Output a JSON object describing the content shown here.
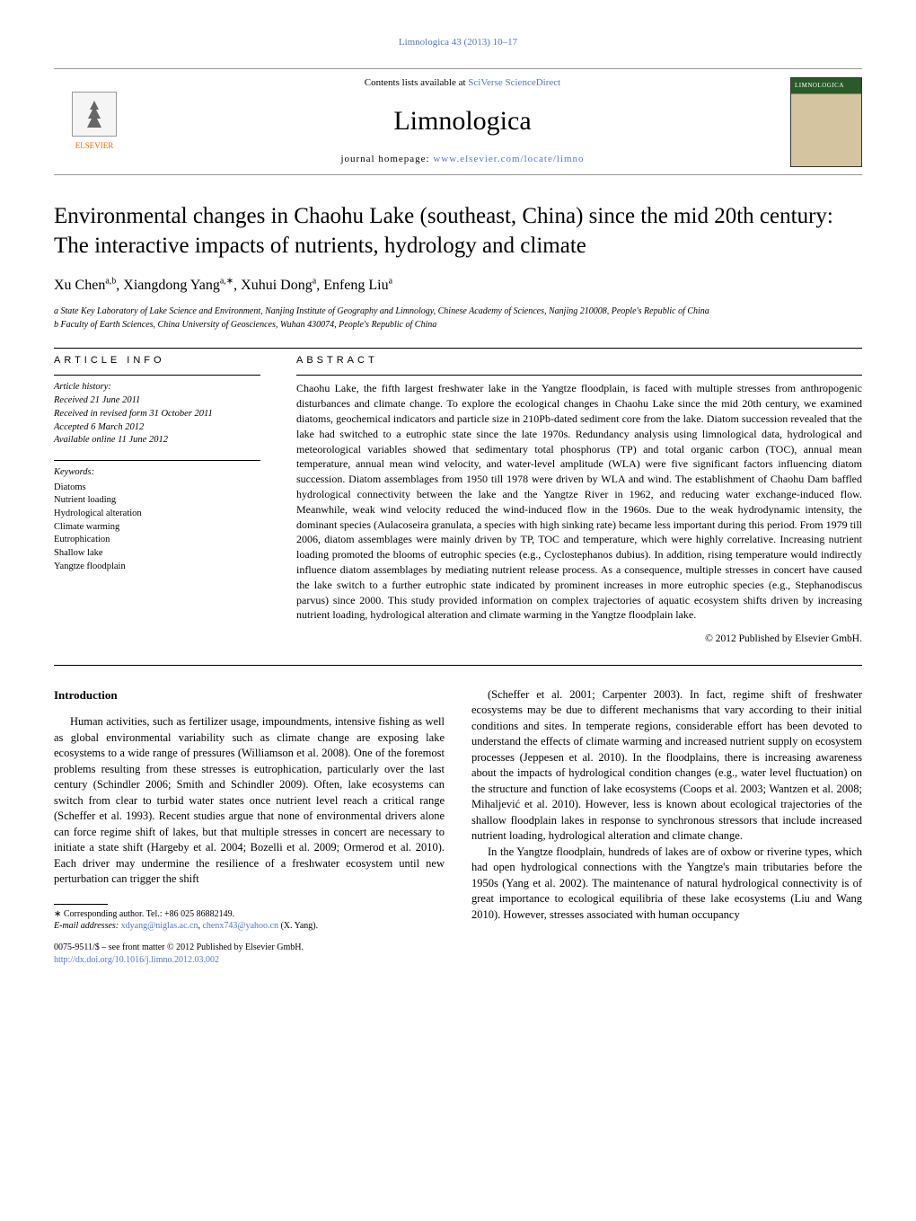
{
  "journal_ref": "Limnologica 43 (2013) 10–17",
  "header": {
    "publisher_name": "ELSEVIER",
    "contents_prefix": "Contents lists available at ",
    "contents_link": "SciVerse ScienceDirect",
    "journal_name": "Limnologica",
    "homepage_prefix": "journal homepage: ",
    "homepage_link": "www.elsevier.com/locate/limno"
  },
  "title": "Environmental changes in Chaohu Lake (southeast, China) since the mid 20th century: The interactive impacts of nutrients, hydrology and climate",
  "authors_html": "Xu Chen<sup>a,b</sup>, Xiangdong Yang<sup>a,∗</sup>, Xuhui Dong<sup>a</sup>, Enfeng Liu<sup>a</sup>",
  "affiliations": [
    "a State Key Laboratory of Lake Science and Environment, Nanjing Institute of Geography and Limnology, Chinese Academy of Sciences, Nanjing 210008, People's Republic of China",
    "b Faculty of Earth Sciences, China University of Geosciences, Wuhan 430074, People's Republic of China"
  ],
  "article_info": {
    "heading": "article info",
    "history_label": "Article history:",
    "history": [
      "Received 21 June 2011",
      "Received in revised form 31 October 2011",
      "Accepted 6 March 2012",
      "Available online 11 June 2012"
    ],
    "keywords_label": "Keywords:",
    "keywords": [
      "Diatoms",
      "Nutrient loading",
      "Hydrological alteration",
      "Climate warming",
      "Eutrophication",
      "Shallow lake",
      "Yangtze floodplain"
    ]
  },
  "abstract": {
    "heading": "abstract",
    "text": "Chaohu Lake, the fifth largest freshwater lake in the Yangtze floodplain, is faced with multiple stresses from anthropogenic disturbances and climate change. To explore the ecological changes in Chaohu Lake since the mid 20th century, we examined diatoms, geochemical indicators and particle size in 210Pb-dated sediment core from the lake. Diatom succession revealed that the lake had switched to a eutrophic state since the late 1970s. Redundancy analysis using limnological data, hydrological and meteorological variables showed that sedimentary total phosphorus (TP) and total organic carbon (TOC), annual mean temperature, annual mean wind velocity, and water-level amplitude (WLA) were five significant factors influencing diatom succession. Diatom assemblages from 1950 till 1978 were driven by WLA and wind. The establishment of Chaohu Dam baffled hydrological connectivity between the lake and the Yangtze River in 1962, and reducing water exchange-induced flow. Meanwhile, weak wind velocity reduced the wind-induced flow in the 1960s. Due to the weak hydrodynamic intensity, the dominant species (Aulacoseira granulata, a species with high sinking rate) became less important during this period. From 1979 till 2006, diatom assemblages were mainly driven by TP, TOC and temperature, which were highly correlative. Increasing nutrient loading promoted the blooms of eutrophic species (e.g., Cyclostephanos dubius). In addition, rising temperature would indirectly influence diatom assemblages by mediating nutrient release process. As a consequence, multiple stresses in concert have caused the lake switch to a further eutrophic state indicated by prominent increases in more eutrophic species (e.g., Stephanodiscus parvus) since 2000. This study provided information on complex trajectories of aquatic ecosystem shifts driven by increasing nutrient loading, hydrological alteration and climate warming in the Yangtze floodplain lake.",
    "copyright": "© 2012 Published by Elsevier GmbH."
  },
  "intro": {
    "heading": "Introduction",
    "col1_p1": "Human activities, such as fertilizer usage, impoundments, intensive fishing as well as global environmental variability such as climate change are exposing lake ecosystems to a wide range of pressures (Williamson et al. 2008). One of the foremost problems resulting from these stresses is eutrophication, particularly over the last century (Schindler 2006; Smith and Schindler 2009). Often, lake ecosystems can switch from clear to turbid water states once nutrient level reach a critical range (Scheffer et al. 1993). Recent studies argue that none of environmental drivers alone can force regime shift of lakes, but that multiple stresses in concert are necessary to initiate a state shift (Hargeby et al. 2004; Bozelli et al. 2009; Ormerod et al. 2010). Each driver may undermine the resilience of a freshwater ecosystem until new perturbation can trigger the shift",
    "col2_p1": "(Scheffer et al. 2001; Carpenter 2003). In fact, regime shift of freshwater ecosystems may be due to different mechanisms that vary according to their initial conditions and sites. In temperate regions, considerable effort has been devoted to understand the effects of climate warming and increased nutrient supply on ecosystem processes (Jeppesen et al. 2010). In the floodplains, there is increasing awareness about the impacts of hydrological condition changes (e.g., water level fluctuation) on the structure and function of lake ecosystems (Coops et al. 2003; Wantzen et al. 2008; Mihaljević et al. 2010). However, less is known about ecological trajectories of the shallow floodplain lakes in response to synchronous stressors that include increased nutrient loading, hydrological alteration and climate change.",
    "col2_p2": "In the Yangtze floodplain, hundreds of lakes are of oxbow or riverine types, which had open hydrological connections with the Yangtze's main tributaries before the 1950s (Yang et al. 2002). The maintenance of natural hydrological connectivity is of great importance to ecological equilibria of these lake ecosystems (Liu and Wang 2010). However, stresses associated with human occupancy"
  },
  "footnotes": {
    "corresponding": "∗ Corresponding author. Tel.: +86 025 86882149.",
    "email_label": "E-mail addresses: ",
    "email1": "xdyang@niglas.ac.cn",
    "email_sep": ", ",
    "email2": "chenx743@yahoo.cn",
    "email_suffix": " (X. Yang)."
  },
  "bottom": {
    "front_matter": "0075-9511/$ – see front matter © 2012 Published by Elsevier GmbH.",
    "doi": "http://dx.doi.org/10.1016/j.limno.2012.03.002"
  }
}
